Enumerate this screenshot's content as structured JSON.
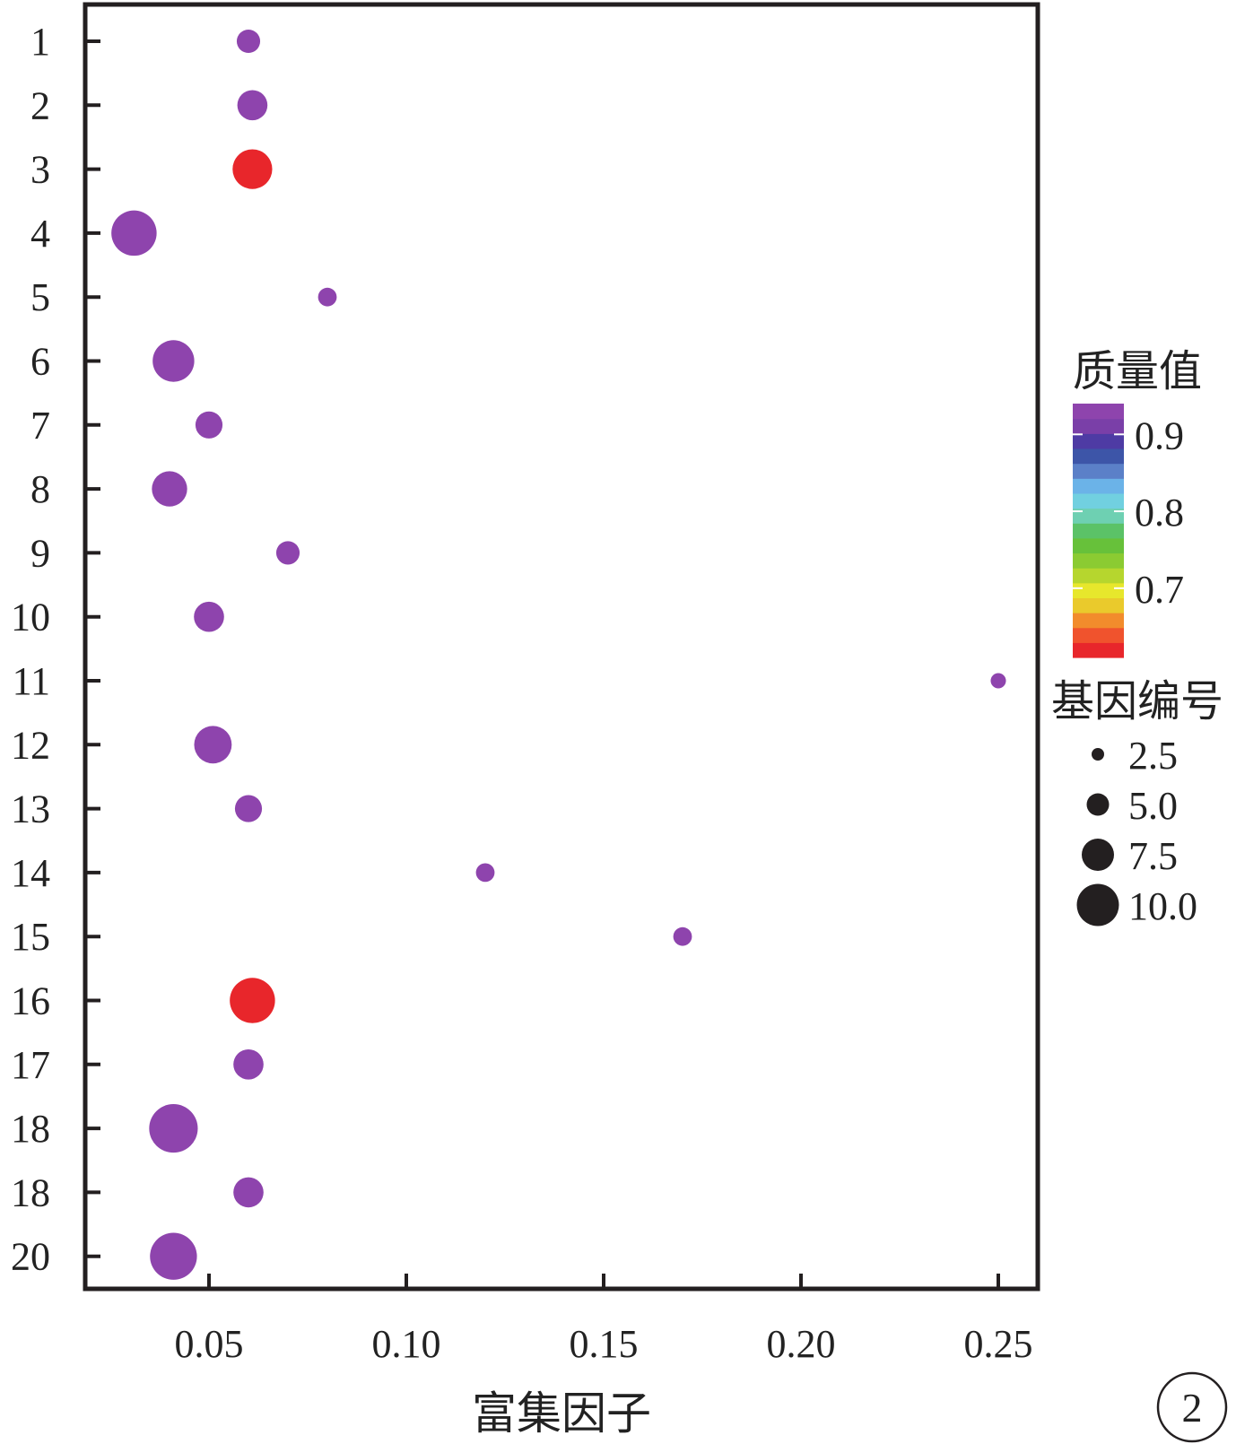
{
  "chart_data": {
    "type": "scatter",
    "xlabel": "富集因子",
    "ylabel": "",
    "xlim": [
      0.018,
      0.261
    ],
    "x_ticks": [
      "0.05",
      "0.10",
      "0.15",
      "0.20",
      "0.25"
    ],
    "x_tick_values": [
      0.05,
      0.1,
      0.15,
      0.2,
      0.25
    ],
    "y_categories": [
      "1",
      "2",
      "3",
      "4",
      "5",
      "6",
      "7",
      "8",
      "9",
      "10",
      "11",
      "12",
      "13",
      "14",
      "15",
      "16",
      "17",
      "18",
      "18",
      "20"
    ],
    "points": [
      {
        "category": "1",
        "x": 0.06,
        "count": 2,
        "quality": 0.93
      },
      {
        "category": "2",
        "x": 0.061,
        "count": 4,
        "quality": 0.93
      },
      {
        "category": "3",
        "x": 0.061,
        "count": 8,
        "quality": 0.61
      },
      {
        "category": "4",
        "x": 0.031,
        "count": 11,
        "quality": 0.93
      },
      {
        "category": "5",
        "x": 0.08,
        "count": 1,
        "quality": 0.93
      },
      {
        "category": "6",
        "x": 0.041,
        "count": 9,
        "quality": 0.93
      },
      {
        "category": "7",
        "x": 0.05,
        "count": 3,
        "quality": 0.93
      },
      {
        "category": "8",
        "x": 0.04,
        "count": 6,
        "quality": 0.93
      },
      {
        "category": "9",
        "x": 0.07,
        "count": 2,
        "quality": 0.93
      },
      {
        "category": "10",
        "x": 0.05,
        "count": 4,
        "quality": 0.93
      },
      {
        "category": "11",
        "x": 0.25,
        "count": 0.5,
        "quality": 0.93
      },
      {
        "category": "12",
        "x": 0.051,
        "count": 7,
        "quality": 0.93
      },
      {
        "category": "13",
        "x": 0.06,
        "count": 3,
        "quality": 0.93
      },
      {
        "category": "14",
        "x": 0.12,
        "count": 1,
        "quality": 0.93
      },
      {
        "category": "15",
        "x": 0.17,
        "count": 1,
        "quality": 0.93
      },
      {
        "category": "16",
        "x": 0.061,
        "count": 11,
        "quality": 0.61
      },
      {
        "category": "17",
        "x": 0.06,
        "count": 4,
        "quality": 0.93
      },
      {
        "category": "18",
        "x": 0.041,
        "count": 13,
        "quality": 0.93
      },
      {
        "category": "18",
        "x": 0.06,
        "count": 4,
        "quality": 0.93
      },
      {
        "category": "20",
        "x": 0.041,
        "count": 12,
        "quality": 0.93
      }
    ],
    "color_legend": {
      "title": "质量值",
      "ticks": [
        "0.9",
        "0.8",
        "0.7"
      ],
      "tick_values": [
        0.9,
        0.8,
        0.7
      ],
      "range": [
        0.61,
        0.94
      ],
      "stops": [
        "#e8262b",
        "#f0532d",
        "#f28c2c",
        "#eaca2c",
        "#e7e72c",
        "#b6d62e",
        "#8bcb32",
        "#67c13a",
        "#5bc267",
        "#6ed0b2",
        "#71d0e0",
        "#6bb3e8",
        "#5b80c8",
        "#3d55a8",
        "#4e3ba4",
        "#7a3fa8",
        "#8e44ad"
      ]
    },
    "size_legend": {
      "title": "基因编号",
      "labels": [
        "2.5",
        "5.0",
        "7.5",
        "10.0"
      ],
      "values": [
        2.5,
        5.0,
        7.5,
        10.0
      ]
    },
    "grid": false,
    "legend_position": "right"
  },
  "panel_label": "2"
}
